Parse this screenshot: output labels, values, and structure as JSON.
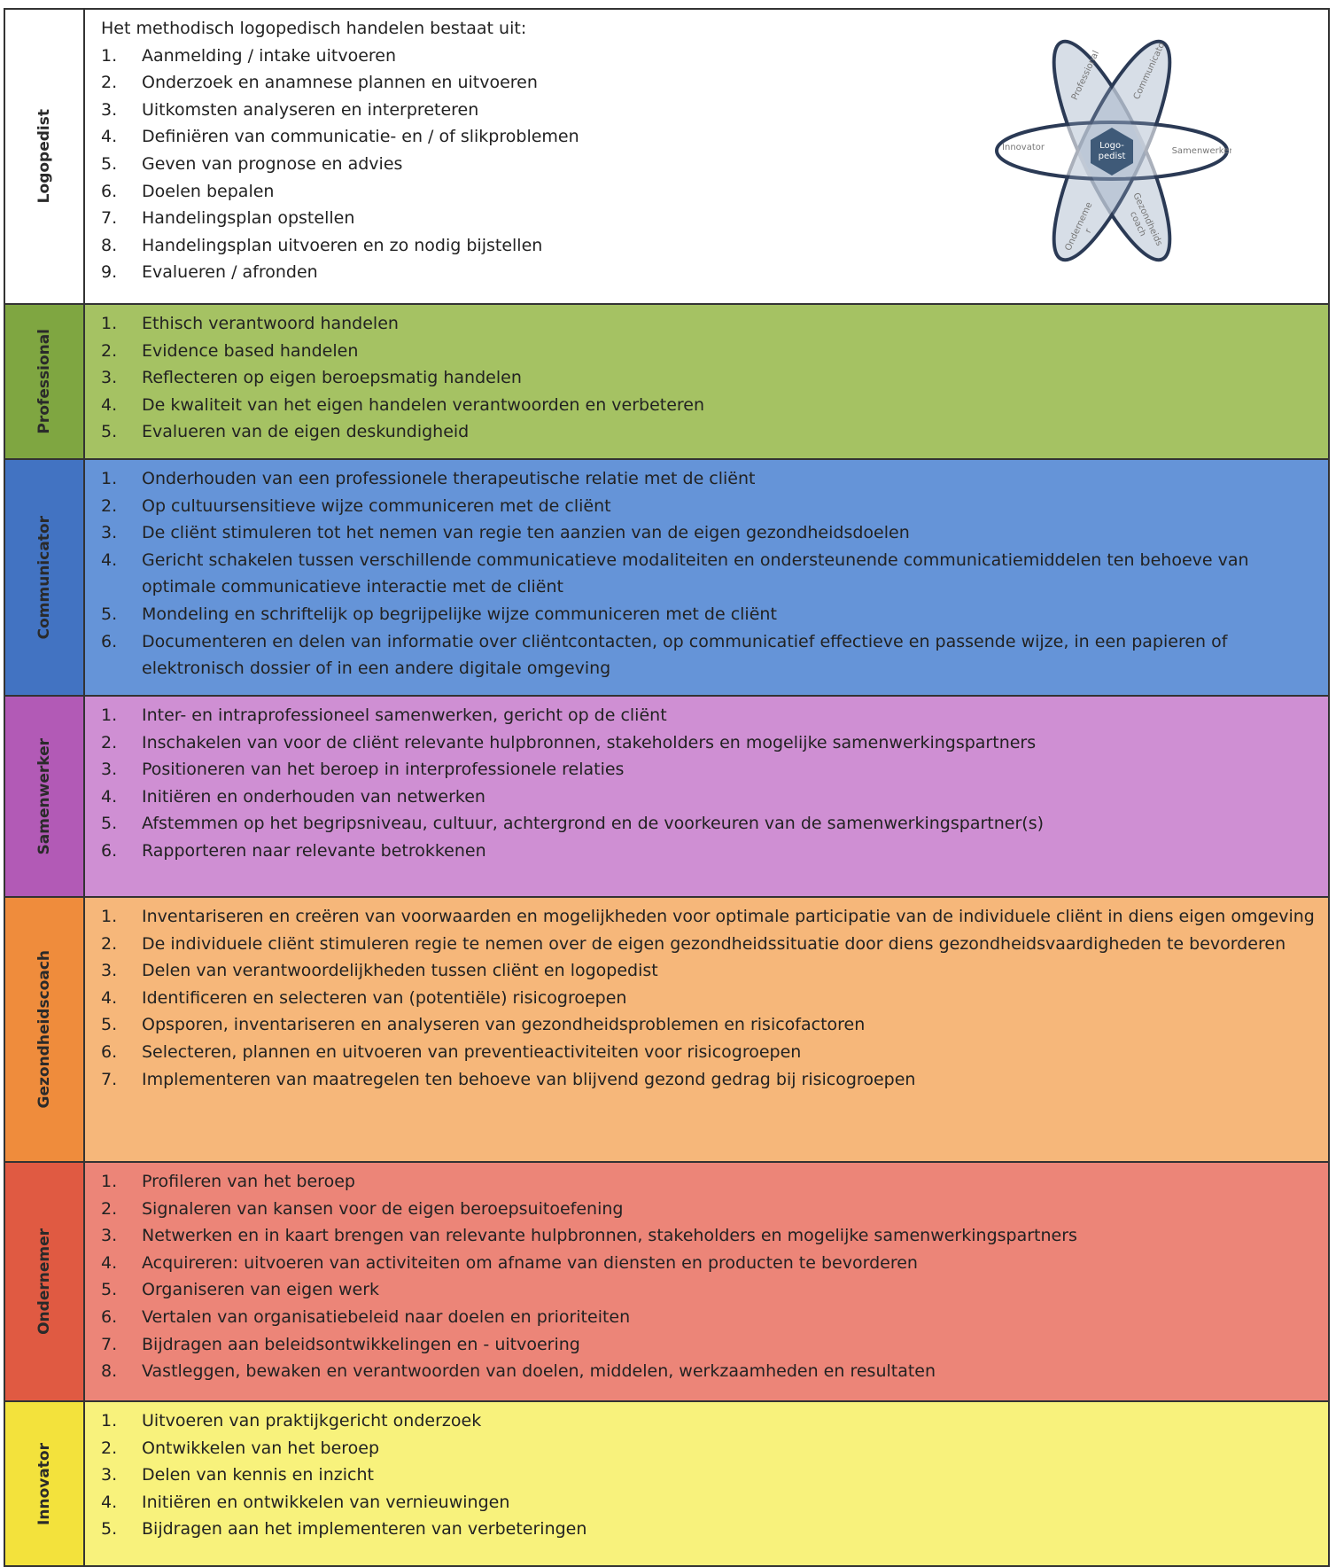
{
  "sections": [
    {
      "label": "Logopedist",
      "intro": "Het methodisch logopedisch handelen bestaat uit:",
      "items": [
        {
          "num": "1.",
          "text": "Aanmelding / intake uitvoeren"
        },
        {
          "num": "2.",
          "text": "Onderzoek en anamnese plannen en uitvoeren"
        },
        {
          "num": "3.",
          "text": "Uitkomsten analyseren en interpreteren"
        },
        {
          "num": "4.",
          "text": "Definiëren van communicatie- en / of slikproblemen"
        },
        {
          "num": "5.",
          "text": "Geven van prognose en advies"
        },
        {
          "num": "6.",
          "text": "Doelen bepalen"
        },
        {
          "num": "7.",
          "text": "Handelingsplan opstellen"
        },
        {
          "num": "8.",
          "text": "Handelingsplan uitvoeren en zo nodig bijstellen"
        },
        {
          "num": "9.",
          "text": "Evalueren / afronden"
        }
      ]
    },
    {
      "label": "Professional",
      "items": [
        {
          "num": "1.",
          "text": "Ethisch verantwoord handelen"
        },
        {
          "num": "2.",
          "text": "Evidence based handelen"
        },
        {
          "num": "3.",
          "text": "Reflecteren op eigen beroepsmatig handelen"
        },
        {
          "num": "4.",
          "text": "De kwaliteit van het eigen handelen verantwoorden en verbeteren"
        },
        {
          "num": "5.",
          "text": "Evalueren van de eigen deskundigheid"
        }
      ]
    },
    {
      "label": "Communicator",
      "items": [
        {
          "num": "1.",
          "text": "Onderhouden van een professionele therapeutische relatie met de cliënt"
        },
        {
          "num": "2.",
          "text": "Op cultuursensitieve wijze communiceren met de cliënt"
        },
        {
          "num": "3.",
          "text": "De cliënt stimuleren tot het nemen van regie ten aanzien van de eigen gezondheidsdoelen"
        },
        {
          "num": "4.",
          "text": "Gericht schakelen tussen verschillende communicatieve modaliteiten en ondersteunende communicatiemiddelen ten behoeve van optimale communicatieve interactie met de cliënt"
        },
        {
          "num": "5.",
          "text": "Mondeling en schriftelijk op begrijpelijke wijze communiceren met de cliënt"
        },
        {
          "num": "6.",
          "text": "Documenteren en delen van informatie over cliëntcontacten, op communicatief effectieve en passende wijze, in een papieren of elektronisch dossier of in een andere digitale omgeving"
        }
      ]
    },
    {
      "label": "Samenwerker",
      "items": [
        {
          "num": "1.",
          "text": "Inter- en intraprofessioneel samenwerken, gericht op de cliënt"
        },
        {
          "num": "2.",
          "text": "Inschakelen van voor de cliënt relevante hulpbronnen, stakeholders en mogelijke samenwerkingspartners"
        },
        {
          "num": "3.",
          "text": "Positioneren van het beroep in interprofessionele relaties"
        },
        {
          "num": "4.",
          "text": "Initiëren en onderhouden van netwerken"
        },
        {
          "num": "5.",
          "text": "Afstemmen op het begripsniveau, cultuur, achtergrond en de voorkeuren van de samenwerkingspartner(s)"
        },
        {
          "num": "6.",
          "text": "Rapporteren naar relevante betrokkenen"
        }
      ]
    },
    {
      "label": "Gezondheidscoach",
      "items": [
        {
          "num": "1.",
          "text": "Inventariseren en creëren van voorwaarden en mogelijkheden voor optimale participatie van de individuele cliënt in diens eigen omgeving"
        },
        {
          "num": "2.",
          "text": "De individuele cliënt stimuleren regie te nemen over de eigen gezondheidssituatie door diens gezondheidsvaardigheden te bevorderen"
        },
        {
          "num": "3.",
          "text": "Delen van verantwoordelijkheden tussen cliënt en logopedist"
        },
        {
          "num": "4.",
          "text": "Identificeren en selecteren van (potentiële) risicogroepen"
        },
        {
          "num": "5.",
          "text": "Opsporen, inventariseren en analyseren van gezondheidsproblemen en risicofactoren"
        },
        {
          "num": "6.",
          "text": "Selecteren, plannen en uitvoeren van preventieactiviteiten voor risicogroepen"
        },
        {
          "num": "7.",
          "text": "Implementeren van maatregelen ten behoeve van blijvend gezond gedrag bij risicogroepen"
        }
      ]
    },
    {
      "label": "Ondernemer",
      "items": [
        {
          "num": "1.",
          "text": "Profileren van het beroep"
        },
        {
          "num": "2.",
          "text": "Signaleren van kansen voor de eigen beroepsuitoefening"
        },
        {
          "num": "3.",
          "text": "Netwerken en in kaart brengen van relevante hulpbronnen, stakeholders en mogelijke samenwerkingspartners"
        },
        {
          "num": "4.",
          "text": "Acquireren: uitvoeren van activiteiten om afname van diensten en producten te bevorderen"
        },
        {
          "num": "5.",
          "text": "Organiseren van eigen werk"
        },
        {
          "num": "6.",
          "text": "Vertalen van organisatiebeleid naar doelen en prioriteiten"
        },
        {
          "num": "7.",
          "text": "Bijdragen aan beleidsontwikkelingen en - uitvoering"
        },
        {
          "num": "8.",
          "text": "Vastleggen, bewaken en verantwoorden van doelen, middelen, werkzaamheden en resultaten"
        }
      ]
    },
    {
      "label": "Innovator",
      "items": [
        {
          "num": "1.",
          "text": "Uitvoeren van praktijkgericht onderzoek"
        },
        {
          "num": "2.",
          "text": "Ontwikkelen van het beroep"
        },
        {
          "num": "3.",
          "text": "Delen van kennis en inzicht"
        },
        {
          "num": "4.",
          "text": "Initiëren en ontwikkelen van vernieuwingen"
        },
        {
          "num": "5.",
          "text": "Bijdragen aan het implementeren van verbeteringen"
        }
      ]
    }
  ],
  "diagram": {
    "center": [
      "Logo-",
      "pedist"
    ],
    "petals": [
      [
        "Professional"
      ],
      [
        "Communicato"
      ],
      [
        "Samenwerker"
      ],
      [
        "Gezondheids",
        "coach"
      ],
      [
        "Onderneme",
        "r"
      ],
      [
        "Innovator"
      ]
    ]
  }
}
